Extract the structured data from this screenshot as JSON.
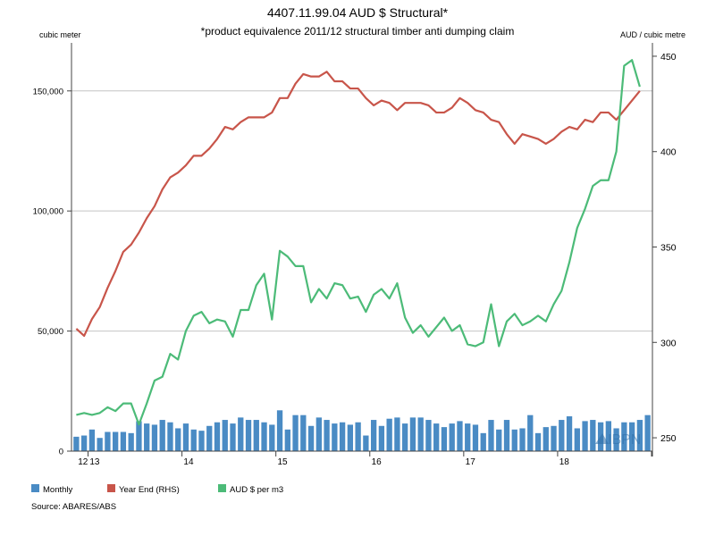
{
  "chart_data": {
    "type": "bar",
    "title": "4407.11.99.04 AUD $ Structural*",
    "subtitle": "*product equivalence 2011/12 structural timber anti dumping claim",
    "left_axis_unit": "cubic meter",
    "right_axis_unit": "AUD / cubic metre",
    "source": "Source: ABARES/ABS",
    "watermark": "IBPN",
    "ylim_left": [
      0,
      170000
    ],
    "ylim_right": [
      243,
      457
    ],
    "left_ticks": [
      0,
      50000,
      100000,
      150000
    ],
    "left_tick_labels": [
      "0",
      "50,000",
      "100,000",
      "150,000"
    ],
    "right_ticks": [
      250,
      300,
      350,
      400,
      450
    ],
    "right_tick_labels": [
      "250",
      "300",
      "350",
      "400",
      "450"
    ],
    "x_tick_labels": [
      "12",
      "13",
      "14",
      "15",
      "16",
      "17",
      "18"
    ],
    "grid": true,
    "legend_position": "bottom-left",
    "colors": {
      "Monthly": "#4a8bc4",
      "Year End (RHS)": "#c8554a",
      "AUD $ per m3": "#4cbb78"
    },
    "series": [
      {
        "name": "Monthly",
        "type": "bar",
        "axis": "left",
        "values": [
          6000,
          6500,
          9000,
          5500,
          8000,
          8000,
          8000,
          7500,
          12500,
          11500,
          11000,
          13000,
          12000,
          9500,
          11500,
          9000,
          8500,
          10500,
          12000,
          13000,
          11500,
          14000,
          13000,
          13000,
          12000,
          11000,
          17000,
          9000,
          15000,
          15000,
          10500,
          14000,
          13000,
          11500,
          12000,
          11000,
          12000,
          6500,
          13000,
          10500,
          13500,
          14000,
          11500,
          14000,
          14000,
          13000,
          11500,
          10000,
          11500,
          12500,
          11500,
          11000,
          7500,
          13000,
          9000,
          13000,
          9000,
          9500,
          15000,
          7500,
          10000,
          10500,
          13000,
          14500,
          9500,
          12500,
          13000,
          12000,
          12500,
          9500,
          12000,
          12000,
          13000,
          15000
        ]
      },
      {
        "name": "Year End (RHS)",
        "type": "line",
        "axis": "left",
        "values": [
          51000,
          48000,
          55000,
          60000,
          68000,
          75000,
          83000,
          86000,
          91000,
          97000,
          102000,
          109000,
          114000,
          116000,
          119000,
          123000,
          123000,
          126000,
          130000,
          135000,
          134000,
          137000,
          139000,
          139000,
          139000,
          141000,
          147000,
          147000,
          153000,
          157000,
          156000,
          156000,
          158000,
          154000,
          154000,
          151000,
          151000,
          147000,
          144000,
          146000,
          145000,
          142000,
          145000,
          145000,
          145000,
          144000,
          141000,
          141000,
          143000,
          147000,
          145000,
          142000,
          141000,
          138000,
          137000,
          132000,
          128000,
          132000,
          131000,
          130000,
          128000,
          130000,
          133000,
          135000,
          134000,
          138000,
          137000,
          141000,
          141000,
          138000,
          142000,
          146000,
          150000
        ]
      },
      {
        "name": "AUD $ per m3",
        "type": "line",
        "axis": "right",
        "values": [
          262,
          263,
          262,
          263,
          266,
          264,
          268,
          268,
          257,
          268,
          280,
          282,
          294,
          291,
          306,
          314,
          316,
          310,
          312,
          311,
          303,
          317,
          317,
          330,
          336,
          312,
          348,
          345,
          340,
          340,
          321,
          328,
          323,
          331,
          330,
          323,
          324,
          316,
          325,
          328,
          323,
          331,
          313,
          305,
          309,
          303,
          308,
          313,
          306,
          309,
          299,
          298,
          300,
          320,
          298,
          311,
          315,
          309,
          311,
          314,
          311,
          320,
          327,
          342,
          360,
          370,
          382,
          385,
          385,
          400,
          445,
          448,
          434
        ]
      }
    ]
  }
}
